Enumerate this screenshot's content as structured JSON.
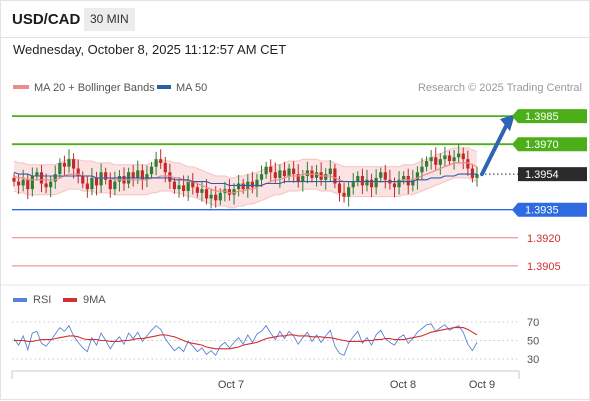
{
  "header": {
    "symbol": "USD/CAD",
    "timeframe": "30 MIN",
    "datetime": "Wednesday, October 8, 2025 11:12:57 AM CET"
  },
  "legend": {
    "ma20": "MA 20 + Bollinger Bands",
    "ma50": "MA 50",
    "copyright": "Research © 2025 Trading Central",
    "rsi": "RSI",
    "rsi_ma": "9MA"
  },
  "colors": {
    "candle_up": "#2e7d32",
    "candle_down": "#c62828",
    "resistance": "#4caf1a",
    "support_strong": "#2f6be0",
    "support_weak": "#ef7b7b",
    "ma20": "#f08a8a",
    "ma50": "#2d5ea8",
    "bands_fill": "#fbe3e3",
    "rsi": "#5b82d6",
    "rsi_ma": "#d32f2f",
    "arrow": "#2f64b5",
    "last_price_bg": "#2b2b2b"
  },
  "chart_data": [
    {
      "type": "candlestick",
      "title": "USD/CAD 30 MIN",
      "ylim": [
        1.3898,
        1.3992
      ],
      "x_ticks": [
        "Oct 7",
        "Oct 8",
        "Oct 9"
      ],
      "levels": [
        {
          "label": "1.3985",
          "value": 1.3985,
          "kind": "resistance",
          "role": "target"
        },
        {
          "label": "1.3970",
          "value": 1.397,
          "kind": "resistance"
        },
        {
          "label": "1.3954",
          "value": 1.3954,
          "kind": "last"
        },
        {
          "label": "1.3935",
          "value": 1.3935,
          "kind": "pivot"
        },
        {
          "label": "1.3920",
          "value": 1.392,
          "kind": "support"
        },
        {
          "label": "1.3905",
          "value": 1.3905,
          "kind": "support"
        }
      ],
      "close_series": [
        1.395,
        1.3948,
        1.3951,
        1.3946,
        1.3953,
        1.3955,
        1.3949,
        1.3947,
        1.395,
        1.3954,
        1.396,
        1.3958,
        1.3962,
        1.3957,
        1.3953,
        1.3949,
        1.3946,
        1.3952,
        1.3948,
        1.3955,
        1.3951,
        1.3946,
        1.395,
        1.3953,
        1.3949,
        1.3955,
        1.3952,
        1.3956,
        1.3951,
        1.3954,
        1.3958,
        1.3962,
        1.396,
        1.3955,
        1.395,
        1.3946,
        1.3948,
        1.3945,
        1.395,
        1.3947,
        1.3944,
        1.3946,
        1.3941,
        1.3943,
        1.394,
        1.3944,
        1.3946,
        1.3943,
        1.3946,
        1.3949,
        1.3946,
        1.395,
        1.3947,
        1.3951,
        1.3954,
        1.3958,
        1.3955,
        1.3952,
        1.3956,
        1.3953,
        1.3957,
        1.3954,
        1.395,
        1.3953,
        1.3956,
        1.3952,
        1.3955,
        1.3951,
        1.3954,
        1.3957,
        1.3949,
        1.3944,
        1.3942,
        1.3947,
        1.395,
        1.3953,
        1.3948,
        1.3951,
        1.3947,
        1.3952,
        1.3955,
        1.3951,
        1.3949,
        1.3947,
        1.3951,
        1.3953,
        1.3948,
        1.3951,
        1.3955,
        1.3958,
        1.3961,
        1.3963,
        1.3959,
        1.3962,
        1.3964,
        1.3961,
        1.3963,
        1.3965,
        1.3962,
        1.3957,
        1.3952,
        1.3954
      ],
      "ma20_series": [
        1.3953,
        1.3952,
        1.3952,
        1.3951,
        1.3951,
        1.3951,
        1.3951,
        1.3951,
        1.3951,
        1.3951,
        1.3952,
        1.3953,
        1.3954,
        1.3954,
        1.3954,
        1.3953,
        1.3953,
        1.3953,
        1.3952,
        1.3952,
        1.3952,
        1.3952,
        1.3951,
        1.3951,
        1.3951,
        1.3951,
        1.3951,
        1.3951,
        1.3951,
        1.3951,
        1.3952,
        1.3952,
        1.3953,
        1.3953,
        1.3953,
        1.3952,
        1.3952,
        1.3951,
        1.395,
        1.395,
        1.3949,
        1.3948,
        1.3947,
        1.3946,
        1.3945,
        1.3945,
        1.3945,
        1.3944,
        1.3944,
        1.3945,
        1.3945,
        1.3946,
        1.3946,
        1.3947,
        1.3948,
        1.3949,
        1.395,
        1.3951,
        1.3951,
        1.3952,
        1.3953,
        1.3953,
        1.3953,
        1.3954,
        1.3954,
        1.3954,
        1.3954,
        1.3953,
        1.3953,
        1.3953,
        1.3952,
        1.3951,
        1.395,
        1.395,
        1.395,
        1.395,
        1.395,
        1.395,
        1.395,
        1.395,
        1.395,
        1.395,
        1.395,
        1.395,
        1.395,
        1.3951,
        1.3951,
        1.3951,
        1.3952,
        1.3953,
        1.3954,
        1.3955,
        1.3956,
        1.3957,
        1.3958,
        1.3959,
        1.396,
        1.396,
        1.396,
        1.396,
        1.3959,
        1.3958
      ],
      "ma50_series": [
        1.3955,
        1.3954,
        1.3954,
        1.3954,
        1.3953,
        1.3953,
        1.3953,
        1.3953,
        1.3953,
        1.3953,
        1.3953,
        1.3953,
        1.3953,
        1.3953,
        1.3953,
        1.3953,
        1.3953,
        1.3953,
        1.3952,
        1.3952,
        1.3952,
        1.3952,
        1.3952,
        1.3952,
        1.3952,
        1.3952,
        1.3952,
        1.3952,
        1.3952,
        1.3952,
        1.3952,
        1.3952,
        1.3952,
        1.3952,
        1.3952,
        1.3951,
        1.3951,
        1.3951,
        1.3951,
        1.395,
        1.395,
        1.395,
        1.395,
        1.3949,
        1.3949,
        1.3949,
        1.3949,
        1.3948,
        1.3948,
        1.3948,
        1.3948,
        1.3948,
        1.3948,
        1.3948,
        1.3948,
        1.3949,
        1.3949,
        1.3949,
        1.3949,
        1.395,
        1.395,
        1.395,
        1.395,
        1.395,
        1.395,
        1.395,
        1.395,
        1.395,
        1.395,
        1.395,
        1.395,
        1.395,
        1.395,
        1.395,
        1.395,
        1.395,
        1.395,
        1.395,
        1.395,
        1.395,
        1.395,
        1.395,
        1.395,
        1.395,
        1.395,
        1.395,
        1.395,
        1.395,
        1.3951,
        1.3951,
        1.3951,
        1.3952,
        1.3952,
        1.3952,
        1.3953,
        1.3953,
        1.3953,
        1.3954,
        1.3954,
        1.3954,
        1.3954,
        1.3954
      ],
      "band_width": 0.0008,
      "projection": {
        "from": 1.3954,
        "to": 1.3985
      }
    },
    {
      "type": "line",
      "title": "RSI",
      "ylim": [
        30,
        70
      ],
      "y_ticks": [
        "70",
        "50",
        "30"
      ],
      "series": [
        {
          "name": "RSI",
          "values": [
            52,
            45,
            55,
            40,
            58,
            60,
            47,
            44,
            50,
            57,
            64,
            60,
            66,
            55,
            48,
            42,
            38,
            53,
            45,
            58,
            50,
            41,
            49,
            54,
            46,
            58,
            52,
            59,
            49,
            55,
            61,
            66,
            62,
            52,
            45,
            39,
            43,
            38,
            49,
            44,
            38,
            42,
            35,
            39,
            34,
            44,
            48,
            42,
            48,
            53,
            46,
            56,
            48,
            57,
            60,
            66,
            58,
            51,
            60,
            52,
            60,
            55,
            46,
            53,
            59,
            49,
            56,
            48,
            55,
            61,
            44,
            36,
            34,
            47,
            54,
            60,
            47,
            53,
            45,
            56,
            61,
            52,
            48,
            45,
            53,
            56,
            47,
            52,
            59,
            63,
            67,
            68,
            60,
            64,
            67,
            61,
            64,
            66,
            59,
            46,
            39,
            48
          ]
        },
        {
          "name": "9MA",
          "values": [
            50,
            50,
            50,
            49,
            49,
            50,
            51,
            51,
            51,
            52,
            53,
            54,
            55,
            55,
            54,
            52,
            51,
            51,
            51,
            50,
            50,
            49,
            49,
            49,
            50,
            50,
            51,
            52,
            52,
            53,
            54,
            55,
            56,
            56,
            55,
            54,
            52,
            50,
            48,
            47,
            46,
            45,
            43,
            42,
            41,
            41,
            41,
            41,
            42,
            43,
            45,
            46,
            47,
            48,
            50,
            52,
            53,
            54,
            55,
            55,
            56,
            56,
            55,
            55,
            55,
            54,
            54,
            54,
            53,
            53,
            52,
            51,
            50,
            49,
            49,
            49,
            49,
            50,
            50,
            51,
            51,
            52,
            52,
            51,
            51,
            51,
            52,
            53,
            54,
            55,
            57,
            59,
            60,
            61,
            62,
            63,
            64,
            64,
            64,
            62,
            59,
            56
          ]
        }
      ]
    }
  ]
}
